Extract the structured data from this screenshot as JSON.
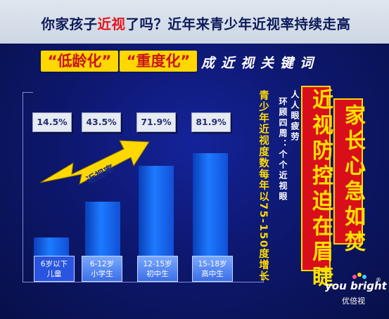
{
  "header": {
    "title_pre": "你家孩子",
    "title_highlight": "近视",
    "title_post": "了吗？近年来青少年近视率持续走高"
  },
  "tags": [
    "“低龄化”",
    "“重度化”"
  ],
  "tagline": "成近视关键词",
  "chart_data": {
    "type": "bar",
    "categories": [
      "6岁以下\n儿童",
      "6-12岁\n小学生",
      "12-15岁\n初中生",
      "15-18岁\n高中生"
    ],
    "category_lines": [
      [
        "6岁以下",
        "儿童"
      ],
      [
        "6-12岁",
        "小学生"
      ],
      [
        "12-15岁",
        "初中生"
      ],
      [
        "15-18岁",
        "高中生"
      ]
    ],
    "values": [
      14.5,
      43.5,
      71.9,
      81.9
    ],
    "value_labels": [
      "14.5%",
      "43.5%",
      "71.9%",
      "81.9%"
    ],
    "unit": "%",
    "ylim": [
      0,
      100
    ],
    "trend_arrow_label": "近视率",
    "bar_color": "#1a6cf0",
    "highlight_color": "#ffd800"
  },
  "side_text": {
    "col1": "青少年近视度数每年以75-150度增长",
    "col2a": "环顾四周：个个近视眼",
    "col2b": "人人眼疲劳"
  },
  "red_banners": {
    "left": "近视防控迫在眉睫",
    "right": "家长心急如焚"
  },
  "brand": {
    "name": "you bright",
    "registered": "®",
    "chinese": "优倍视"
  },
  "colors": {
    "red": "#d80f1a",
    "yellow": "#ffd800",
    "navy": "#0d1870"
  }
}
